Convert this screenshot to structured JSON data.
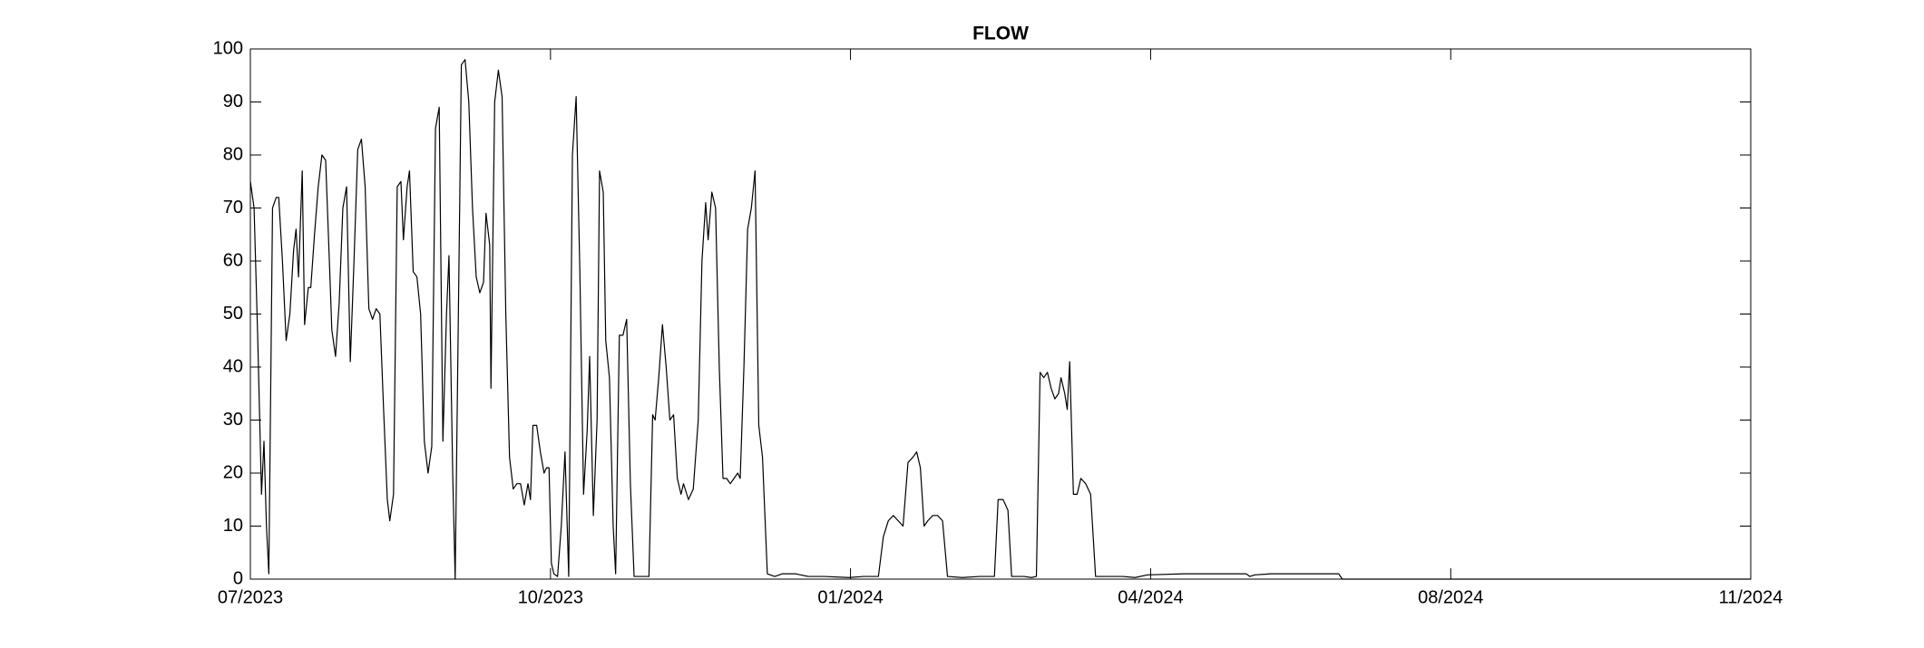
{
  "chart_data": {
    "type": "line",
    "title": "FLOW",
    "color": "#000000",
    "grid": false,
    "xlim": [
      2023.5,
      2024.8333
    ],
    "xticks": [
      {
        "value": 2023.5,
        "label": "07/2023"
      },
      {
        "value": 2023.7667,
        "label": "10/2023"
      },
      {
        "value": 2024.0333,
        "label": "01/2024"
      },
      {
        "value": 2024.3,
        "label": "04/2024"
      },
      {
        "value": 2024.5667,
        "label": "08/2024"
      },
      {
        "value": 2024.8333,
        "label": "11/2024"
      }
    ],
    "ylim": [
      0,
      100
    ],
    "yticks": [
      0,
      10,
      20,
      30,
      40,
      50,
      60,
      70,
      80,
      90,
      100
    ],
    "x": [
      2023.5,
      2023.5033,
      2023.5066,
      2023.5099,
      2023.5121,
      2023.5143,
      2023.5164,
      2023.5197,
      2023.523,
      2023.5252,
      2023.5285,
      2023.5318,
      2023.5351,
      2023.5384,
      2023.5406,
      2023.5428,
      2023.5461,
      2023.5482,
      2023.5515,
      2023.5537,
      2023.557,
      2023.5603,
      2023.5636,
      2023.5669,
      2023.5702,
      2023.5724,
      2023.5757,
      2023.5789,
      2023.5822,
      2023.5855,
      2023.5888,
      2023.5921,
      2023.5954,
      2023.5987,
      2023.602,
      2023.6053,
      2023.6086,
      2023.6118,
      2023.6151,
      2023.6184,
      2023.6217,
      2023.6239,
      2023.6272,
      2023.6305,
      2023.6338,
      2023.636,
      2023.6393,
      2023.6414,
      2023.6447,
      2023.648,
      2023.6513,
      2023.6546,
      2023.6579,
      2023.6612,
      2023.6645,
      2023.6678,
      2023.6711,
      2023.6743,
      2023.6765,
      2023.6798,
      2023.682,
      2023.6853,
      2023.6875,
      2023.6908,
      2023.6941,
      2023.6974,
      2023.7007,
      2023.7039,
      2023.7072,
      2023.7094,
      2023.7127,
      2023.7138,
      2023.7171,
      2023.7204,
      2023.7237,
      2023.727,
      2023.7303,
      2023.7336,
      2023.7368,
      2023.7401,
      2023.7434,
      2023.7467,
      2023.7489,
      2023.7511,
      2023.7544,
      2023.7577,
      2023.761,
      2023.7632,
      2023.7654,
      2023.7675,
      2023.7697,
      2023.773,
      2023.7763,
      2023.7796,
      2023.7829,
      2023.7862,
      2023.7895,
      2023.7928,
      2023.7961,
      2023.7993,
      2023.8015,
      2023.8048,
      2023.8081,
      2023.8103,
      2023.8136,
      2023.8158,
      2023.8191,
      2023.8224,
      2023.8246,
      2023.8279,
      2023.8311,
      2023.8344,
      2023.8377,
      2023.841,
      2023.8476,
      2023.8542,
      2023.8575,
      2023.8597,
      2023.8629,
      2023.8662,
      2023.8695,
      2023.8728,
      2023.8761,
      2023.8794,
      2023.8827,
      2023.8849,
      2023.8893,
      2023.8936,
      2023.898,
      2023.9013,
      2023.9046,
      2023.9068,
      2023.9101,
      2023.9134,
      2023.9167,
      2023.92,
      2023.9232,
      2023.9265,
      2023.9298,
      2023.9331,
      2023.9353,
      2023.9386,
      2023.9419,
      2023.9452,
      2023.9485,
      2023.9518,
      2023.9551,
      2023.9594,
      2023.966,
      2023.9726,
      2023.9847,
      2023.9957,
      2024.0099,
      2024.0318,
      2024.045,
      2024.0581,
      2024.0625,
      2024.0669,
      2024.0713,
      2024.0757,
      2024.08,
      2024.0844,
      2024.0888,
      2024.0921,
      2024.0954,
      2024.0987,
      2024.102,
      2024.1064,
      2024.1107,
      2024.1151,
      2024.1195,
      2024.1327,
      2024.1483,
      2024.1612,
      2024.1645,
      2024.1689,
      2024.1732,
      2024.1765,
      2024.1875,
      2024.1941,
      2024.1985,
      2024.2018,
      2024.205,
      2024.2083,
      2024.2116,
      2024.2149,
      2024.2182,
      2024.2204,
      2024.2237,
      2024.2259,
      2024.2281,
      2024.2314,
      2024.2347,
      2024.238,
      2024.2423,
      2024.2467,
      2024.2511,
      2024.2752,
      2024.2862,
      2024.2972,
      2024.3301,
      2024.3739,
      2024.3849,
      2024.3882,
      2024.3925,
      2024.4068,
      2024.4287,
      2024.4507,
      2024.4671,
      2024.4704,
      2024.8333
    ],
    "values": [
      75,
      70,
      45,
      16,
      26,
      10,
      1,
      70,
      72,
      72,
      60,
      45,
      50,
      62,
      66,
      57,
      77,
      48,
      55,
      55,
      65,
      74,
      80,
      79,
      60,
      47,
      42,
      52,
      70,
      74,
      41,
      60,
      81,
      83,
      74,
      51,
      49,
      51,
      50,
      32,
      15,
      11,
      16,
      74,
      75,
      64,
      74,
      77,
      58,
      57,
      50,
      26,
      20,
      25,
      85,
      89,
      26,
      50,
      61,
      20,
      0,
      58,
      97,
      98,
      90,
      70,
      57,
      54,
      56,
      69,
      63,
      36,
      90,
      96,
      91,
      50,
      23,
      17,
      18,
      18,
      14,
      18,
      15,
      29,
      29,
      24,
      20,
      21,
      21,
      3,
      1,
      0.5,
      10,
      24,
      0.5,
      80,
      91,
      58,
      16,
      28,
      42,
      12,
      30,
      77,
      73,
      45,
      38,
      10,
      1,
      46,
      46,
      49,
      18,
      0.5,
      0.5,
      0.5,
      31,
      30,
      38,
      48,
      40,
      30,
      31,
      19,
      16,
      18,
      15,
      17,
      30,
      60,
      71,
      64,
      73,
      70,
      40,
      19,
      19,
      18,
      19,
      20,
      19,
      40,
      66,
      70,
      77,
      29,
      23,
      1,
      0.5,
      1,
      1,
      0.5,
      0.5,
      0.3,
      0.5,
      0.5,
      8,
      11,
      12,
      11,
      10,
      22,
      23,
      24,
      21,
      10,
      11,
      12,
      12,
      11,
      0.5,
      0.3,
      0.5,
      0.5,
      15,
      15,
      13,
      0.5,
      0.5,
      0.3,
      0.5,
      39,
      38,
      39,
      36,
      34,
      35,
      38,
      35,
      32,
      41,
      16,
      16,
      19,
      18,
      16,
      0.5,
      0.5,
      0.3,
      0.8,
      1,
      1,
      1,
      0.5,
      0.8,
      1,
      1,
      1,
      1,
      0,
      0
    ]
  }
}
